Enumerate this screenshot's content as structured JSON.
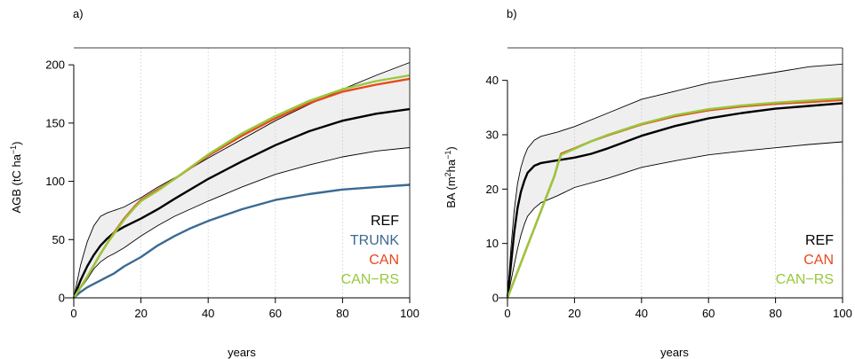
{
  "chart_data": [
    {
      "type": "line",
      "panel_label": "a)",
      "xlabel": "years",
      "ylabel": "AGB (tC ha",
      "ylabel_sup": "−1",
      "ylabel_tail": ")",
      "xlim": [
        0,
        100
      ],
      "ylim": [
        0,
        210
      ],
      "xticks": [
        0,
        20,
        40,
        60,
        80,
        100
      ],
      "yticks": [
        0,
        50,
        100,
        150,
        200
      ],
      "grid": "vertical-dotted",
      "legend_position": "bottom-right",
      "band": {
        "x": [
          0,
          2,
          4,
          6,
          8,
          10,
          12,
          15,
          20,
          25,
          30,
          40,
          50,
          60,
          70,
          80,
          90,
          100
        ],
        "upper": [
          0,
          28,
          48,
          62,
          70,
          73,
          75,
          78,
          86,
          95,
          103,
          120,
          136,
          152,
          166,
          179,
          191,
          202
        ],
        "lower": [
          0,
          8,
          16,
          25,
          31,
          35,
          38,
          43,
          53,
          62,
          70,
          83,
          95,
          106,
          114,
          121,
          126,
          129
        ],
        "color": "#efefef"
      },
      "series": [
        {
          "name": "REF",
          "color": "#000000",
          "width": 2.4,
          "x": [
            0,
            2,
            4,
            6,
            8,
            10,
            12,
            15,
            20,
            25,
            30,
            40,
            50,
            60,
            70,
            80,
            90,
            100
          ],
          "y": [
            0,
            15,
            27,
            37,
            45,
            51,
            56,
            61,
            68,
            76,
            85,
            102,
            117,
            131,
            143,
            152,
            158,
            162
          ]
        },
        {
          "name": "TRUNK",
          "color": "#3a6a93",
          "width": 2.4,
          "x": [
            0,
            2,
            4,
            6,
            8,
            10,
            12,
            15,
            20,
            25,
            30,
            35,
            40,
            50,
            60,
            70,
            80,
            90,
            100
          ],
          "y": [
            0,
            5,
            9,
            12,
            15,
            18,
            21,
            27,
            35,
            45,
            53,
            60,
            66,
            76,
            84,
            89,
            93,
            95,
            97
          ]
        },
        {
          "name": "CAN",
          "color": "#e8481c",
          "width": 2.4,
          "x": [
            0,
            2,
            4,
            6,
            8,
            10,
            12,
            15,
            18,
            20,
            25,
            30,
            40,
            50,
            60,
            70,
            80,
            90,
            100
          ],
          "y": [
            0,
            9,
            18,
            28,
            38,
            47,
            56,
            68,
            78,
            84,
            93,
            102,
            122,
            139,
            154,
            167,
            177,
            183,
            188
          ]
        },
        {
          "name": "CAN−RS",
          "color": "#96c83c",
          "width": 2.4,
          "x": [
            0,
            2,
            4,
            6,
            8,
            10,
            12,
            15,
            18,
            20,
            25,
            30,
            40,
            50,
            60,
            70,
            80,
            90,
            100
          ],
          "y": [
            0,
            9,
            18,
            28,
            38,
            47,
            55,
            67,
            77,
            83,
            92,
            102,
            123,
            141,
            156,
            169,
            179,
            186,
            191
          ]
        }
      ],
      "legend": [
        "REF",
        "TRUNK",
        "CAN",
        "CAN−RS"
      ]
    },
    {
      "type": "line",
      "panel_label": "b)",
      "xlabel": "years",
      "ylabel": "BA (m",
      "ylabel_sup": "2",
      "ylabel_tail": "ha",
      "ylabel_sup2": "−1",
      "ylabel_end": ")",
      "xlim": [
        0,
        100
      ],
      "ylim": [
        0,
        45
      ],
      "xticks": [
        0,
        20,
        40,
        60,
        80,
        100
      ],
      "yticks": [
        0,
        10,
        20,
        30,
        40
      ],
      "grid": "vertical-dotted",
      "legend_position": "bottom-right",
      "band": {
        "x": [
          0,
          1,
          2,
          3,
          4,
          5,
          6,
          8,
          10,
          15,
          20,
          30,
          40,
          50,
          60,
          70,
          80,
          90,
          100
        ],
        "upper": [
          0,
          9,
          16,
          21,
          24,
          26,
          27.5,
          29,
          29.7,
          30.5,
          31.5,
          34,
          36.5,
          38,
          39.5,
          40.5,
          41.5,
          42.5,
          43
        ],
        "lower": [
          0,
          3,
          6,
          9,
          11.5,
          13.5,
          15,
          16.5,
          17.5,
          18.8,
          20.3,
          22,
          24,
          25.2,
          26.3,
          27,
          27.6,
          28.2,
          28.7
        ],
        "color": "#efefef"
      },
      "series": [
        {
          "name": "REF",
          "color": "#000000",
          "width": 2.4,
          "x": [
            0,
            1,
            2,
            3,
            4,
            5,
            6,
            8,
            10,
            15,
            20,
            25,
            30,
            40,
            50,
            60,
            70,
            80,
            90,
            100
          ],
          "y": [
            0,
            6,
            12,
            16.5,
            19.5,
            21.5,
            23,
            24.3,
            24.8,
            25.3,
            25.8,
            26.5,
            27.5,
            29.8,
            31.6,
            33,
            34,
            34.8,
            35.3,
            35.8
          ]
        },
        {
          "name": "CAN",
          "color": "#e8481c",
          "width": 2.4,
          "x": [
            0,
            2,
            4,
            6,
            8,
            10,
            12,
            14,
            15,
            16,
            20,
            25,
            30,
            40,
            50,
            60,
            70,
            80,
            90,
            100
          ],
          "y": [
            0,
            3.2,
            6.4,
            9.6,
            12.8,
            16,
            19.2,
            22.4,
            24.5,
            26.5,
            27.5,
            28.8,
            29.9,
            31.9,
            33.4,
            34.5,
            35.2,
            35.7,
            36,
            36.4
          ]
        },
        {
          "name": "CAN−RS",
          "color": "#96c83c",
          "width": 2.4,
          "x": [
            0,
            2,
            4,
            6,
            8,
            10,
            12,
            14,
            15,
            16,
            20,
            25,
            30,
            40,
            50,
            60,
            70,
            80,
            90,
            100
          ],
          "y": [
            0,
            3.2,
            6.4,
            9.6,
            12.8,
            16,
            19.2,
            22.4,
            24.5,
            26.3,
            27.4,
            28.8,
            30,
            32,
            33.6,
            34.7,
            35.4,
            35.9,
            36.3,
            36.7
          ]
        }
      ],
      "legend": [
        "REF",
        "CAN",
        "CAN−RS"
      ]
    }
  ]
}
